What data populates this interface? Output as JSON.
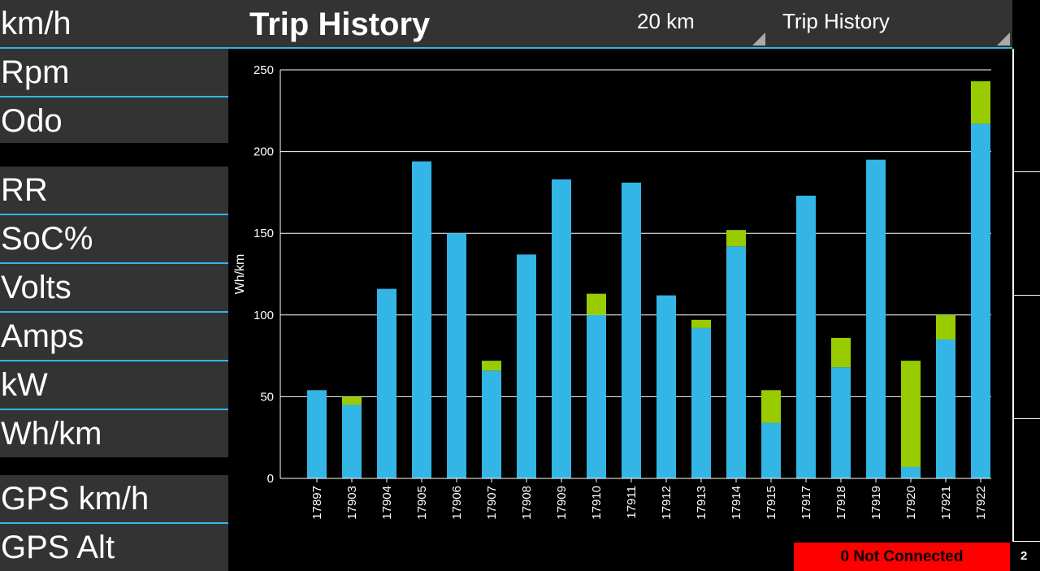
{
  "header": {
    "title": "Trip History",
    "distance_select": "20 km",
    "view_select": "Trip History"
  },
  "sidebar": {
    "items": [
      {
        "label": "km/h"
      },
      {
        "label": "Rpm"
      },
      {
        "label": "Odo"
      },
      {
        "label": "RR"
      },
      {
        "label": "SoC%"
      },
      {
        "label": "Volts"
      },
      {
        "label": "Amps"
      },
      {
        "label": "kW"
      },
      {
        "label": "Wh/km"
      },
      {
        "label": "GPS km/h"
      },
      {
        "label": "GPS Alt"
      }
    ]
  },
  "status": {
    "connection": "0 Not Connected",
    "page": "2"
  },
  "colors": {
    "accent": "#33b5e5",
    "series_blue": "#33b5e5",
    "series_green": "#99cc00",
    "status_bg": "#ff0000",
    "panel_bg": "#333333"
  },
  "chart_data": {
    "type": "bar",
    "stacked": true,
    "ylabel": "Wh/km",
    "ylim": [
      0,
      250
    ],
    "yticks": [
      0,
      50,
      100,
      150,
      200,
      250
    ],
    "grid": true,
    "categories": [
      "17897",
      "17903",
      "17904",
      "17905",
      "17906",
      "17907",
      "17908",
      "17909",
      "17910",
      "17911",
      "17912",
      "17913",
      "17914",
      "17915",
      "17917",
      "17918",
      "17919",
      "17920",
      "17921",
      "17922"
    ],
    "series": [
      {
        "color": "#33b5e5",
        "values": [
          54,
          45,
          116,
          194,
          150,
          66,
          137,
          183,
          100,
          181,
          112,
          92,
          142,
          34,
          173,
          68,
          195,
          7,
          85,
          217
        ]
      },
      {
        "color": "#99cc00",
        "values": [
          0,
          5,
          0,
          0,
          0,
          6,
          0,
          0,
          13,
          0,
          0,
          5,
          10,
          20,
          0,
          18,
          0,
          65,
          15,
          26
        ]
      }
    ]
  }
}
